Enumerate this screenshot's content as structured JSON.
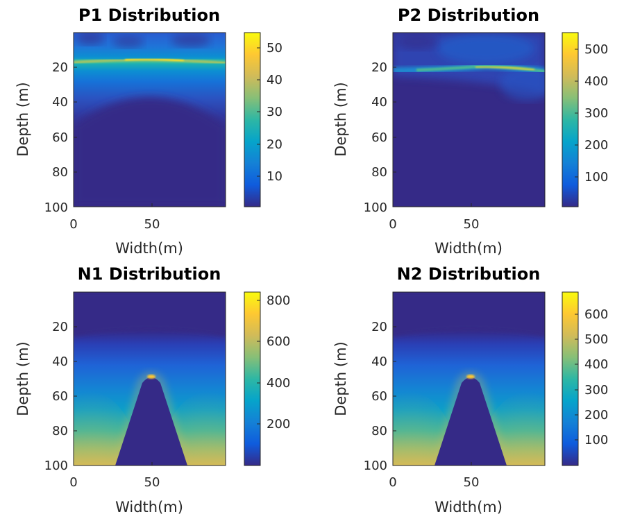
{
  "colors": {
    "colormap": [
      "#352a87",
      "#0f5cdd",
      "#1481d6",
      "#06a4ca",
      "#2eb7a4",
      "#87bf77",
      "#d1bb59",
      "#fec832",
      "#f9fb0e"
    ],
    "background": "#352a87"
  },
  "chart_data": [
    {
      "type": "heatmap",
      "title": "P1 Distribution",
      "xlabel": "Width(m)",
      "ylabel": "Depth (m)",
      "xlim": [
        0,
        95
      ],
      "ylim": [
        0,
        100
      ],
      "y_reversed": true,
      "x_ticks": [
        "0",
        "50"
      ],
      "y_ticks": [
        "20",
        "40",
        "60",
        "80",
        "100"
      ],
      "colorbar_ticks": [
        "10",
        "20",
        "30",
        "40",
        "50"
      ],
      "colorbar_range": [
        0,
        55
      ],
      "field": "thin bright band near depth 17-22 m, diffuse glow above, dark below ~35 m"
    },
    {
      "type": "heatmap",
      "title": "P2 Distribution",
      "xlabel": "Width(m)",
      "ylabel": "Depth (m)",
      "xlim": [
        0,
        95
      ],
      "ylim": [
        0,
        100
      ],
      "y_reversed": true,
      "x_ticks": [
        "0",
        "50"
      ],
      "y_ticks": [
        "20",
        "40",
        "60",
        "80",
        "100"
      ],
      "colorbar_ticks": [
        "100",
        "200",
        "300",
        "400",
        "500"
      ],
      "colorbar_range": [
        0,
        550
      ],
      "field": "bright band at depth ~20-23 m, brightest near x 55-90"
    },
    {
      "type": "heatmap",
      "title": "N1 Distribution",
      "xlabel": "Width(m)",
      "ylabel": "Depth (m)",
      "xlim": [
        0,
        95
      ],
      "ylim": [
        0,
        100
      ],
      "y_reversed": true,
      "x_ticks": [
        "0",
        "50"
      ],
      "y_ticks": [
        "20",
        "40",
        "60",
        "80",
        "100"
      ],
      "colorbar_ticks": [
        "200",
        "400",
        "600",
        "800"
      ],
      "colorbar_range": [
        0,
        840
      ],
      "field": "increasing with depth below ~25 m, dark bell-shaped region centred at x 50 from depth 50 to 100"
    },
    {
      "type": "heatmap",
      "title": "N2 Distribution",
      "xlabel": "Width(m)",
      "ylabel": "Depth (m)",
      "xlim": [
        0,
        95
      ],
      "ylim": [
        0,
        100
      ],
      "y_reversed": true,
      "x_ticks": [
        "0",
        "50"
      ],
      "y_ticks": [
        "20",
        "40",
        "60",
        "80",
        "100"
      ],
      "colorbar_ticks": [
        "100",
        "200",
        "300",
        "400",
        "500",
        "600"
      ],
      "colorbar_range": [
        0,
        690
      ],
      "field": "increasing with depth below ~25 m, dark bell-shaped region centred at x 50 from depth 50 to 100"
    }
  ]
}
